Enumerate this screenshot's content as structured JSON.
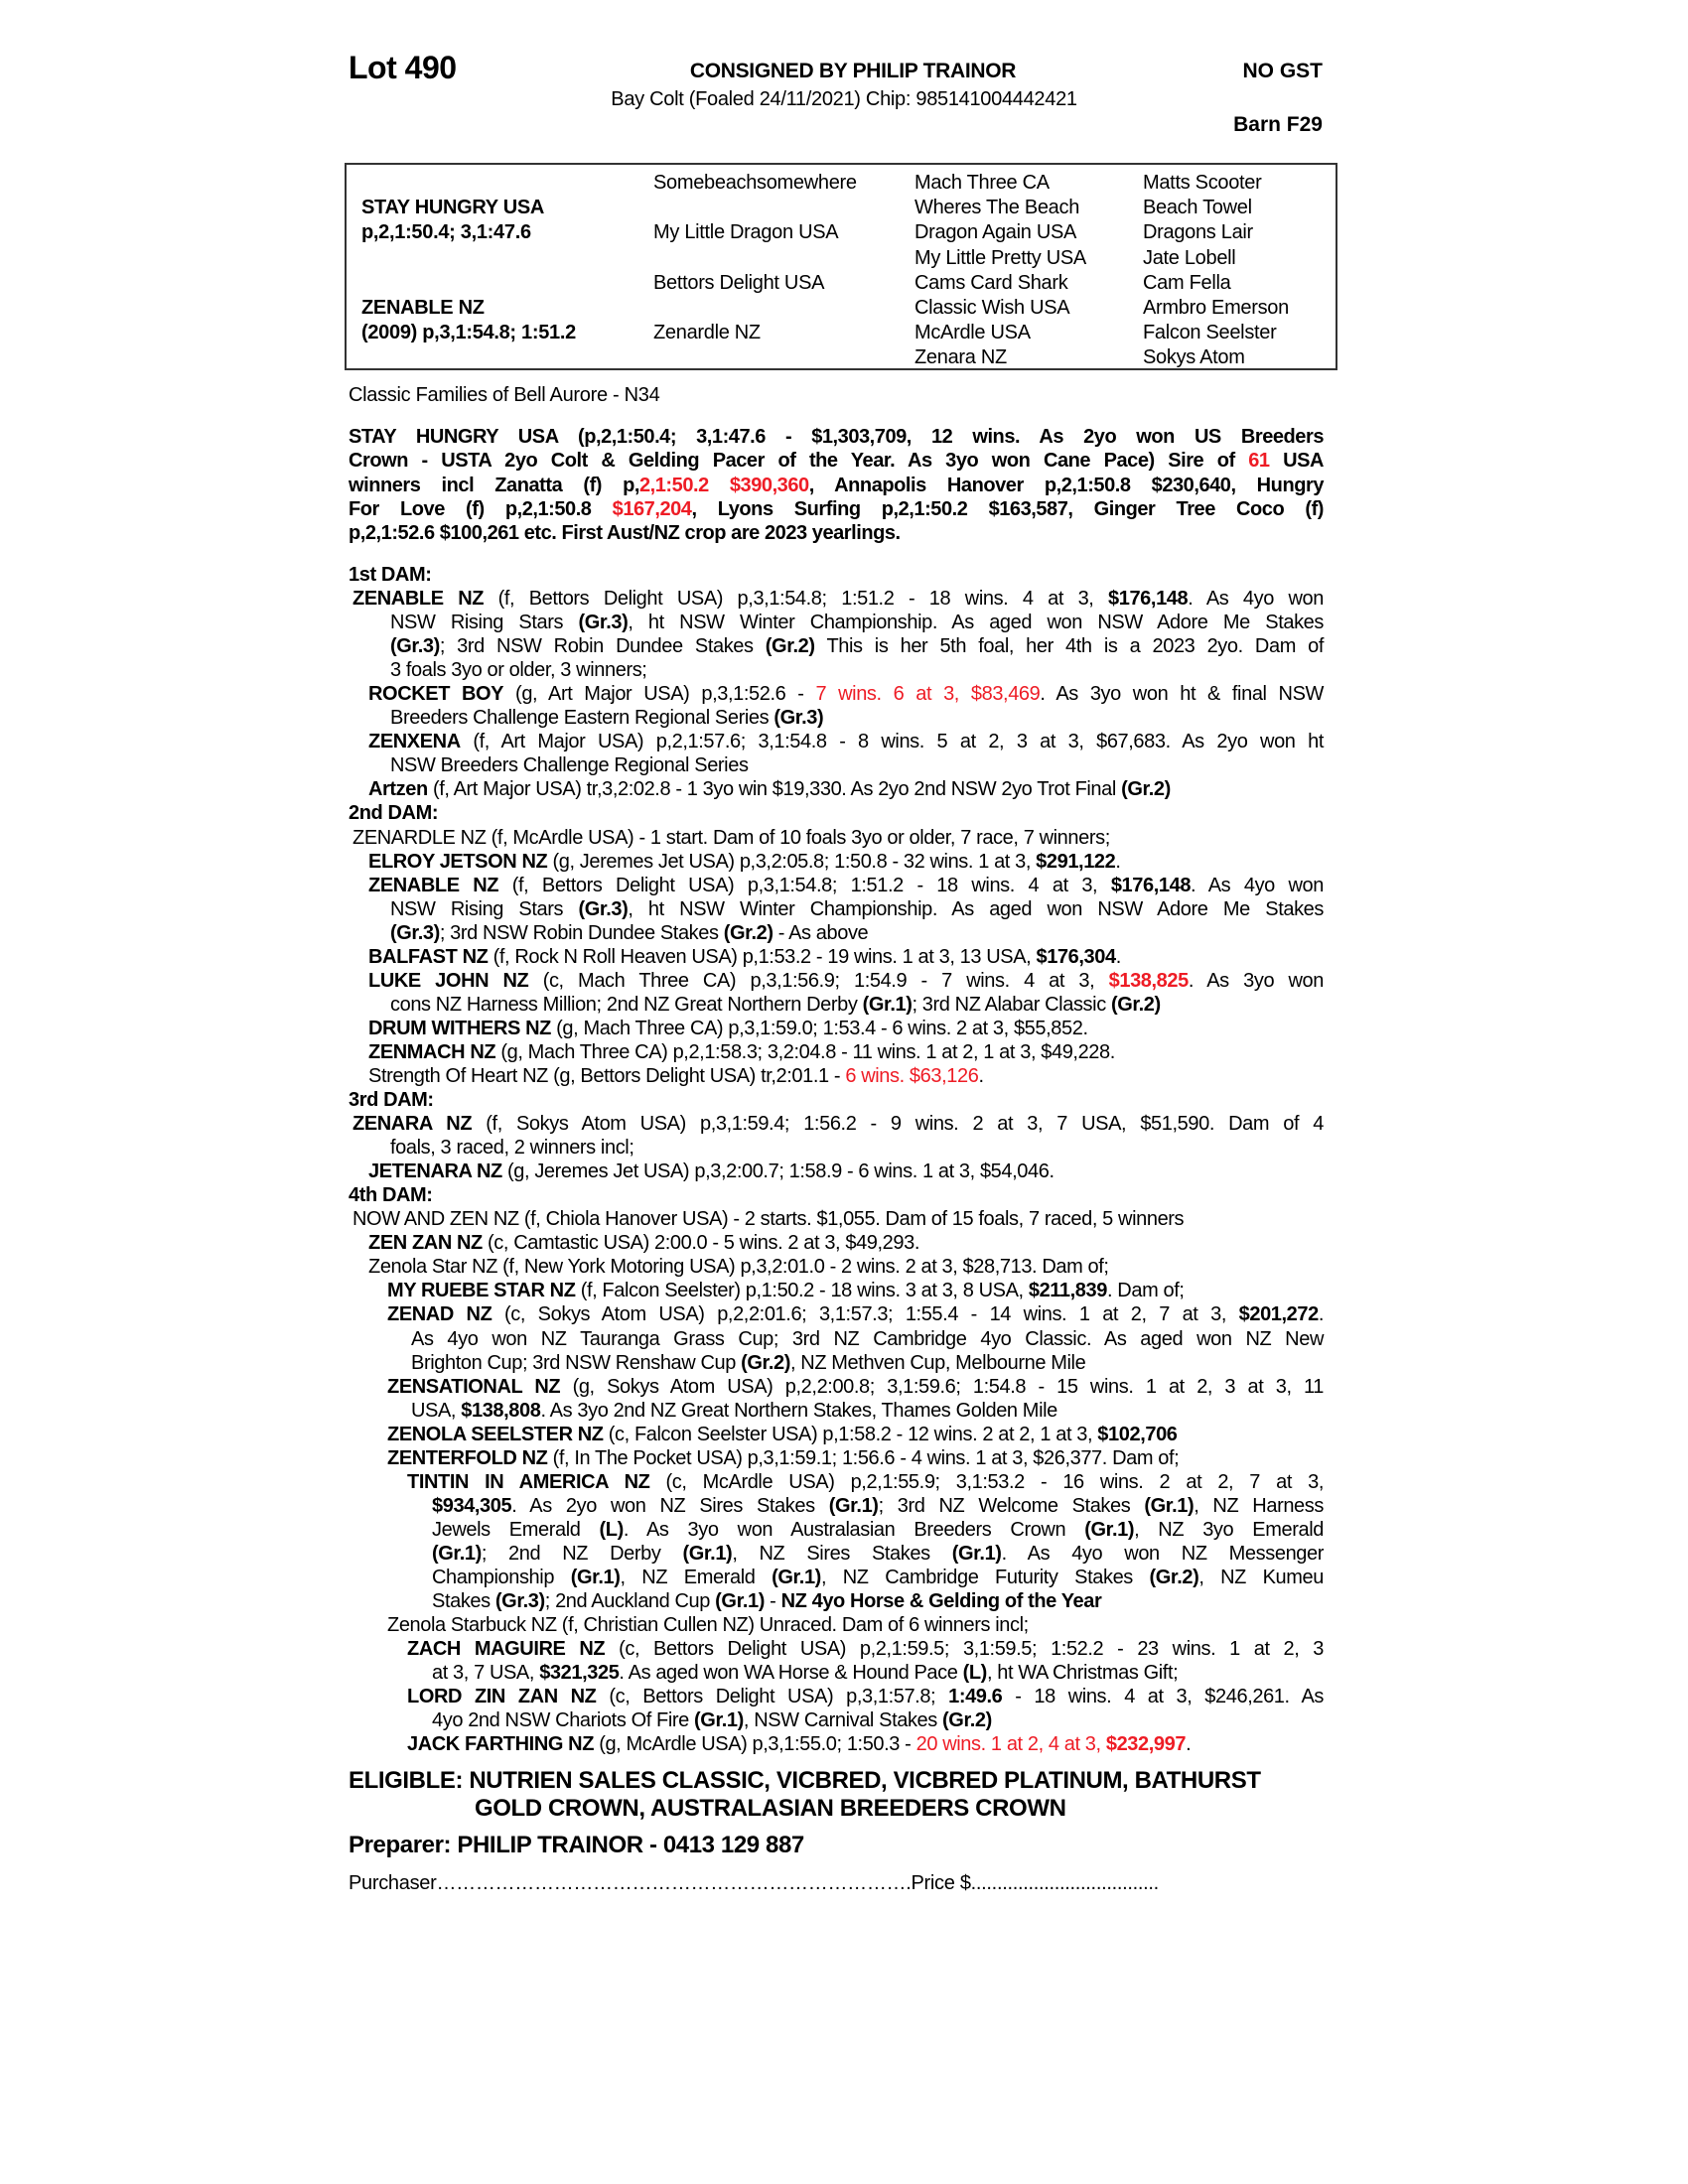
{
  "header": {
    "lot": "Lot 490",
    "consigned": "CONSIGNED BY PHILIP TRAINOR",
    "gst": "NO GST",
    "description": "Bay Colt (Foaled 24/11/2021) Chip: 985141004442421",
    "barn": "Barn F29"
  },
  "pedigree_table": {
    "sire": {
      "name": "STAY HUNGRY USA",
      "record": "p,2,1:50.4; 3,1:47.6"
    },
    "dam": {
      "name": "ZENABLE NZ",
      "record": "(2009) p,3,1:54.8; 1:51.2"
    },
    "gen2": [
      "Somebeachsomewhere",
      "My Little Dragon USA",
      "Bettors Delight USA",
      "Zenardle NZ"
    ],
    "gen3": [
      "Mach Three CA",
      "Wheres The Beach",
      "Dragon Again USA",
      "My Little Pretty USA",
      "Cams Card Shark",
      "Classic Wish USA",
      "McArdle USA",
      "Zenara NZ"
    ],
    "gen4": [
      "Matts Scooter",
      "Beach Towel",
      "Dragons Lair",
      "Jate Lobell",
      "Cam Fella",
      "Armbro Emerson",
      "Falcon Seelster",
      "Sokys Atom"
    ]
  },
  "family": "Classic Families of Bell Aurore - N34",
  "colors": {
    "highlight": "#ee1c25",
    "text": "#000000"
  },
  "sire_paragraph": [
    [
      [
        "STAY HUNGRY USA (p,2,1:50.4; 3,1:47.6 - $1,303,709, 12 wins. As 2yo won US Breeders",
        ""
      ]
    ],
    [
      [
        "Crown - USTA 2yo Colt & Gelding Pacer of the Year. As 3yo won Cane Pace) Sire of ",
        ""
      ],
      [
        "61",
        "r"
      ],
      [
        " USA",
        ""
      ]
    ],
    [
      [
        "winners incl Zanatta (f) p,",
        ""
      ],
      [
        "2,1:50.2 $390,360",
        "r"
      ],
      [
        ", Annapolis Hanover p,2,1:50.8 $230,640, Hungry",
        ""
      ]
    ],
    [
      [
        "For Love (f) p,2,1:50.8 ",
        ""
      ],
      [
        "$167,204",
        "r"
      ],
      [
        ", Lyons Surfing p,2,1:50.2 $163,587, Ginger Tree Coco (f)",
        ""
      ]
    ],
    [
      [
        "p,2,1:52.6 $100,261 etc. First Aust/NZ  crop are 2023 yearlings.",
        ""
      ]
    ]
  ],
  "pedigree_notes": [
    {
      "depth": 0,
      "lines": [
        [
          [
            "1st DAM:",
            "b"
          ]
        ]
      ]
    },
    {
      "depth": 1,
      "lines": [
        [
          [
            "ZENABLE NZ",
            "b"
          ],
          [
            " (f, Bettors Delight USA) p,3,1:54.8; 1:51.2 - 18 wins. 4 at 3, ",
            ""
          ],
          [
            "$176,148",
            "b"
          ],
          [
            ". As 4yo won",
            ""
          ]
        ],
        [
          [
            "NSW Rising Stars ",
            ""
          ],
          [
            "(Gr.3)",
            "b"
          ],
          [
            ", ht NSW Winter Championship. As aged won NSW Adore Me Stakes",
            ""
          ]
        ],
        [
          [
            "(Gr.3)",
            "b"
          ],
          [
            "; 3rd NSW Robin Dundee Stakes ",
            ""
          ],
          [
            "(Gr.2)",
            "b"
          ],
          [
            " This is her 5th foal, her 4th is a 2023 2yo. Dam of",
            ""
          ]
        ],
        [
          [
            "3 foals 3yo or older, 3 winners;",
            ""
          ]
        ]
      ]
    },
    {
      "depth": 2,
      "lines": [
        [
          [
            "ROCKET BOY",
            "b"
          ],
          [
            " (g, Art Major USA) p,3,1:52.6 - ",
            ""
          ],
          [
            "7 wins. 6 at 3, $83,469",
            "r"
          ],
          [
            ". As 3yo won ht & final NSW",
            ""
          ]
        ],
        [
          [
            "Breeders Challenge Eastern Regional Series ",
            ""
          ],
          [
            "(Gr.3)",
            "b"
          ]
        ]
      ]
    },
    {
      "depth": 2,
      "lines": [
        [
          [
            "ZENXENA",
            "b"
          ],
          [
            " (f, Art Major USA) p,2,1:57.6; 3,1:54.8 - 8 wins. 5 at 2, 3 at 3, $67,683. As 2yo won ht",
            ""
          ]
        ],
        [
          [
            "NSW Breeders Challenge Regional Series",
            ""
          ]
        ]
      ]
    },
    {
      "depth": 2,
      "lines": [
        [
          [
            "Artzen",
            "b"
          ],
          [
            " (f, Art Major USA) tr,3,2:02.8 - 1 3yo win $19,330. As 2yo 2nd NSW 2yo Trot Final ",
            ""
          ],
          [
            "(Gr.2)",
            "b"
          ]
        ]
      ]
    },
    {
      "depth": 0,
      "lines": [
        [
          [
            "2nd DAM:",
            "b"
          ]
        ]
      ]
    },
    {
      "depth": 1,
      "lines": [
        [
          [
            "ZENARDLE NZ (f, McArdle USA) - 1 start. Dam of 10 foals 3yo or older, 7 race, 7 winners;",
            ""
          ]
        ]
      ]
    },
    {
      "depth": 2,
      "lines": [
        [
          [
            "ELROY JETSON NZ",
            "b"
          ],
          [
            " (g, Jeremes Jet USA) p,3,2:05.8; 1:50.8 - 32 wins. 1 at 3, ",
            ""
          ],
          [
            "$291,122",
            "b"
          ],
          [
            ".",
            ""
          ]
        ]
      ]
    },
    {
      "depth": 2,
      "lines": [
        [
          [
            "ZENABLE NZ",
            "b"
          ],
          [
            " (f, Bettors Delight USA) p,3,1:54.8; 1:51.2 - 18 wins. 4 at 3, ",
            ""
          ],
          [
            "$176,148",
            "b"
          ],
          [
            ". As 4yo won",
            ""
          ]
        ],
        [
          [
            "NSW Rising Stars ",
            ""
          ],
          [
            "(Gr.3)",
            "b"
          ],
          [
            ", ht NSW Winter Championship. As aged won NSW Adore Me Stakes",
            ""
          ]
        ],
        [
          [
            "(Gr.3)",
            "b"
          ],
          [
            "; 3rd NSW Robin Dundee Stakes ",
            ""
          ],
          [
            "(Gr.2)",
            "b"
          ],
          [
            " - As above",
            ""
          ]
        ]
      ]
    },
    {
      "depth": 2,
      "lines": [
        [
          [
            "BALFAST NZ",
            "b"
          ],
          [
            " (f, Rock N Roll Heaven USA) p,1:53.2 - 19 wins. 1 at 3, 13 USA, ",
            ""
          ],
          [
            "$176,304",
            "b"
          ],
          [
            ".",
            ""
          ]
        ]
      ]
    },
    {
      "depth": 2,
      "lines": [
        [
          [
            "LUKE JOHN NZ",
            "b"
          ],
          [
            " (c, Mach Three CA) p,3,1:56.9; 1:54.9 - 7 wins. 4 at 3, ",
            ""
          ],
          [
            "$138,825",
            "rb"
          ],
          [
            ". As 3yo won",
            ""
          ]
        ],
        [
          [
            "cons NZ Harness Million; 2nd NZ Great Northern Derby ",
            ""
          ],
          [
            "(Gr.1)",
            "b"
          ],
          [
            "; 3rd NZ Alabar Classic ",
            ""
          ],
          [
            "(Gr.2)",
            "b"
          ]
        ]
      ]
    },
    {
      "depth": 2,
      "lines": [
        [
          [
            "DRUM WITHERS NZ",
            "b"
          ],
          [
            " (g, Mach Three CA) p,3,1:59.0; 1:53.4 - 6 wins. 2 at 3, $55,852.",
            ""
          ]
        ]
      ]
    },
    {
      "depth": 2,
      "lines": [
        [
          [
            "ZENMACH NZ",
            "b"
          ],
          [
            " (g, Mach Three CA) p,2,1:58.3; 3,2:04.8 - 11 wins. 1 at 2, 1 at 3, $49,228.",
            ""
          ]
        ]
      ]
    },
    {
      "depth": 2,
      "lines": [
        [
          [
            "Strength Of Heart NZ (g, Bettors Delight USA) tr,2:01.1 - ",
            ""
          ],
          [
            "6 wins. $63,126",
            "r"
          ],
          [
            ".",
            ""
          ]
        ]
      ]
    },
    {
      "depth": 0,
      "lines": [
        [
          [
            "3rd DAM:",
            "b"
          ]
        ]
      ]
    },
    {
      "depth": 1,
      "lines": [
        [
          [
            "ZENARA NZ",
            "b"
          ],
          [
            " (f, Sokys Atom USA) p,3,1:59.4; 1:56.2 - 9 wins. 2 at 3, 7 USA, $51,590. Dam of 4",
            ""
          ]
        ],
        [
          [
            "foals, 3 raced, 2 winners incl;",
            ""
          ]
        ]
      ]
    },
    {
      "depth": 2,
      "lines": [
        [
          [
            "JETENARA NZ",
            "b"
          ],
          [
            " (g, Jeremes Jet USA) p,3,2:00.7; 1:58.9 - 6 wins. 1 at 3, $54,046.",
            ""
          ]
        ]
      ]
    },
    {
      "depth": 0,
      "lines": [
        [
          [
            "4th DAM:",
            "b"
          ]
        ]
      ]
    },
    {
      "depth": 1,
      "lines": [
        [
          [
            "NOW AND ZEN NZ (f, Chiola Hanover USA)  - 2 starts. $1,055. Dam of 15 foals, 7 raced, 5 winners",
            ""
          ]
        ]
      ]
    },
    {
      "depth": 2,
      "lines": [
        [
          [
            "ZEN ZAN NZ",
            "b"
          ],
          [
            " (c, Camtastic USA) 2:00.0 - 5 wins. 2 at 3, $49,293.",
            ""
          ]
        ]
      ]
    },
    {
      "depth": 2,
      "lines": [
        [
          [
            "Zenola Star NZ (f, New York Motoring USA) p,3,2:01.0 - 2 wins. 2 at 3, $28,713. Dam of;",
            ""
          ]
        ]
      ]
    },
    {
      "depth": 3,
      "lines": [
        [
          [
            "MY RUEBE STAR NZ",
            "b"
          ],
          [
            " (f, Falcon Seelster) p,1:50.2 - 18 wins. 3 at 3, 8 USA, ",
            ""
          ],
          [
            "$211,839",
            "b"
          ],
          [
            ". Dam of;",
            ""
          ]
        ]
      ]
    },
    {
      "depth": 3,
      "lines": [
        [
          [
            "ZENAD NZ",
            "b"
          ],
          [
            " (c, Sokys Atom USA) p,2,2:01.6; 3,1:57.3; 1:55.4 - 14 wins. 1 at 2, 7 at 3, ",
            ""
          ],
          [
            "$201,272",
            "b"
          ],
          [
            ".",
            ""
          ]
        ],
        [
          [
            "As 4yo won NZ Tauranga Grass Cup; 3rd NZ Cambridge 4yo Classic. As aged won NZ New",
            ""
          ]
        ],
        [
          [
            "Brighton Cup; 3rd NSW Renshaw Cup ",
            ""
          ],
          [
            "(Gr.2)",
            "b"
          ],
          [
            ", NZ Methven Cup, Melbourne Mile",
            ""
          ]
        ]
      ]
    },
    {
      "depth": 3,
      "lines": [
        [
          [
            "ZENSATIONAL NZ",
            "b"
          ],
          [
            " (g, Sokys Atom USA) p,2,2:00.8; 3,1:59.6; 1:54.8 - 15 wins. 1 at 2, 3 at 3, 11",
            ""
          ]
        ],
        [
          [
            "USA, ",
            ""
          ],
          [
            "$138,808",
            "b"
          ],
          [
            ". As 3yo 2nd NZ Great Northern Stakes, Thames Golden Mile",
            ""
          ]
        ]
      ]
    },
    {
      "depth": 3,
      "lines": [
        [
          [
            "ZENOLA SEELSTER NZ",
            "b"
          ],
          [
            " (c, Falcon Seelster USA) p,1:58.2 - 12 wins. 2 at 2, 1 at 3, ",
            ""
          ],
          [
            "$102,706",
            "b"
          ]
        ]
      ]
    },
    {
      "depth": 3,
      "lines": [
        [
          [
            "ZENTERFOLD NZ",
            "b"
          ],
          [
            " (f, In The Pocket USA) p,3,1:59.1; 1:56.6 - 4 wins. 1 at 3, $26,377. Dam of;",
            ""
          ]
        ]
      ]
    },
    {
      "depth": 4,
      "lines": [
        [
          [
            "TINTIN IN AMERICA NZ",
            "b"
          ],
          [
            " (c, McArdle USA) p,2,1:55.9; 3,1:53.2 - 16 wins. 2 at 2, 7 at 3,",
            ""
          ]
        ],
        [
          [
            "$934,305",
            "b"
          ],
          [
            ". As 2yo won NZ Sires Stakes ",
            ""
          ],
          [
            "(Gr.1)",
            "b"
          ],
          [
            "; 3rd NZ Welcome Stakes ",
            ""
          ],
          [
            "(Gr.1)",
            "b"
          ],
          [
            ", NZ Harness",
            ""
          ]
        ],
        [
          [
            "Jewels Emerald ",
            ""
          ],
          [
            "(L)",
            "b"
          ],
          [
            ". As 3yo won Australasian Breeders Crown ",
            ""
          ],
          [
            "(Gr.1)",
            "b"
          ],
          [
            ", NZ 3yo Emerald",
            ""
          ]
        ],
        [
          [
            "(Gr.1)",
            "b"
          ],
          [
            "; 2nd NZ Derby ",
            ""
          ],
          [
            "(Gr.1)",
            "b"
          ],
          [
            ", NZ Sires Stakes ",
            ""
          ],
          [
            "(Gr.1)",
            "b"
          ],
          [
            ". As 4yo won NZ Messenger",
            ""
          ]
        ],
        [
          [
            "Championship ",
            ""
          ],
          [
            "(Gr.1)",
            "b"
          ],
          [
            ", NZ Emerald ",
            ""
          ],
          [
            "(Gr.1)",
            "b"
          ],
          [
            ", NZ Cambridge Futurity Stakes ",
            ""
          ],
          [
            "(Gr.2)",
            "b"
          ],
          [
            ", NZ Kumeu",
            ""
          ]
        ],
        [
          [
            "Stakes ",
            ""
          ],
          [
            "(Gr.3)",
            "b"
          ],
          [
            "; 2nd Auckland Cup ",
            ""
          ],
          [
            "(Gr.1)",
            "b"
          ],
          [
            " - ",
            ""
          ],
          [
            "NZ 4yo Horse & Gelding of the Year",
            "b"
          ]
        ]
      ]
    },
    {
      "depth": 3,
      "lines": [
        [
          [
            "Zenola Starbuck NZ (f, Christian Cullen NZ) Unraced. Dam of 6 winners incl;",
            ""
          ]
        ]
      ]
    },
    {
      "depth": 4,
      "lines": [
        [
          [
            "ZACH MAGUIRE NZ",
            "b"
          ],
          [
            " (c, Bettors Delight USA) p,2,1:59.5; 3,1:59.5; 1:52.2 - 23 wins. 1 at 2, 3",
            ""
          ]
        ],
        [
          [
            "at 3, 7 USA, ",
            ""
          ],
          [
            "$321,325",
            "b"
          ],
          [
            ". As aged won WA Horse & Hound Pace ",
            ""
          ],
          [
            "(L)",
            "b"
          ],
          [
            ", ht WA Christmas Gift;",
            ""
          ]
        ]
      ]
    },
    {
      "depth": 4,
      "lines": [
        [
          [
            "LORD ZIN ZAN NZ",
            "b"
          ],
          [
            " (c, Bettors Delight USA) p,3,1:57.8; ",
            ""
          ],
          [
            "1:49.6",
            "b"
          ],
          [
            " - 18 wins. 4 at 3, $246,261. As",
            ""
          ]
        ],
        [
          [
            "4yo 2nd NSW Chariots Of Fire ",
            ""
          ],
          [
            "(Gr.1)",
            "b"
          ],
          [
            ", NSW Carnival Stakes ",
            ""
          ],
          [
            "(Gr.2)",
            "b"
          ]
        ]
      ]
    },
    {
      "depth": 4,
      "lines": [
        [
          [
            "JACK FARTHING NZ",
            "b"
          ],
          [
            " (g, McArdle USA) p,3,1:55.0; 1:50.3 - ",
            ""
          ],
          [
            "20 wins. 1 at 2, 4 at 3, ",
            "r"
          ],
          [
            "$232,997",
            "rb"
          ],
          [
            ".",
            ""
          ]
        ]
      ]
    }
  ],
  "eligible": {
    "line1": "ELIGIBLE: NUTRIEN SALES CLASSIC, VICBRED, VICBRED PLATINUM, BATHURST",
    "line2": "GOLD CROWN, AUSTRALASIAN BREEDERS CROWN"
  },
  "preparer": "Preparer: PHILIP TRAINOR - 0413 129 887",
  "purchaser": "Purchaser……………………………………………………………….Price $...................................."
}
